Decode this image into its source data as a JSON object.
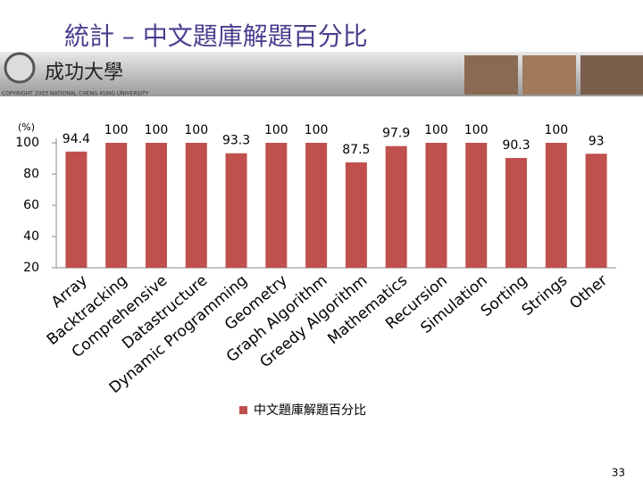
{
  "header": {
    "university": "成功大學",
    "copyright": "COPYRIGHT 2003 NATIONAL CHENG KUNG UNIVERSITY"
  },
  "page_number": "33",
  "chart_data": {
    "type": "bar",
    "title": "統計 – 中文題庫解題百分比",
    "y_unit": "(%)",
    "categories": [
      "Array",
      "Backtracking",
      "Comprehensive",
      "Datastructure",
      "Dynamic Programming",
      "Geometry",
      "Graph Algorithm",
      "Greedy Algorithm",
      "Mathematics",
      "Recursion",
      "Simulation",
      "Sorting",
      "Strings",
      "Other"
    ],
    "series": [
      {
        "name": "中文題庫解題百分比",
        "color": "#c0504d",
        "values": [
          94.4,
          100,
          100,
          100,
          93.3,
          100,
          100,
          87.5,
          97.9,
          100,
          100,
          90.3,
          100,
          93
        ]
      }
    ],
    "ylim": [
      20,
      100
    ],
    "yticks": [
      20,
      40,
      60,
      80,
      100
    ],
    "grid": false,
    "legend": "bottom"
  }
}
